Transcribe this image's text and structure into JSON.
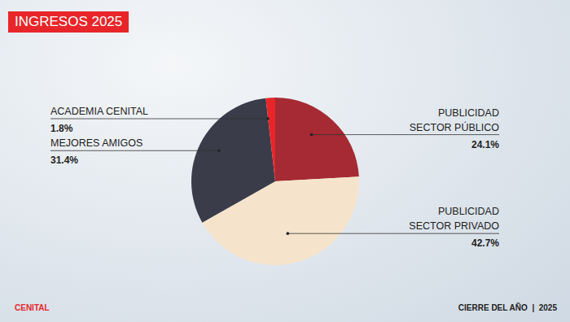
{
  "chart_data": {
    "type": "pie",
    "title": "INGRESOS 2025",
    "categories": [
      "PUBLICIDAD SECTOR PÚBLICO",
      "PUBLICIDAD SECTOR PRIVADO",
      "MEJORES AMIGOS",
      "ACADEMIA CENITAL"
    ],
    "values": [
      24.1,
      42.7,
      31.4,
      1.8
    ],
    "value_labels": [
      "24.1%",
      "42.7%",
      "31.4%",
      "1.8%"
    ],
    "colors": [
      "#a52a33",
      "#f5e4cb",
      "#3a3c4a",
      "#e8262a"
    ],
    "data_labels": true,
    "annotations": [
      "CENITAL",
      "CIERRE DEL AÑO  |  2025"
    ]
  }
}
